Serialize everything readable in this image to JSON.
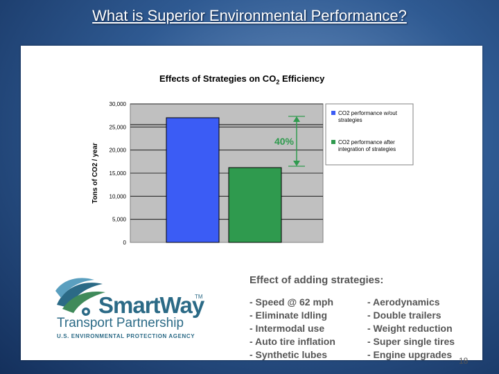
{
  "slide": {
    "title": "What is Superior Environmental Performance?",
    "page_number": "18"
  },
  "chart_data": {
    "type": "bar",
    "title": "Effects of Strategies on CO2 Efficiency",
    "title_parts": {
      "pre": "Effects of Strategies on CO",
      "sub": "2",
      "post": " Efficiency"
    },
    "ylabel": "Tons of CO2 / year",
    "xlabel": "",
    "ylim": [
      0,
      30000
    ],
    "yticks": [
      0,
      5000,
      10000,
      15000,
      20000,
      25000,
      30000
    ],
    "ytick_labels": [
      "0",
      "5,000",
      "10,000",
      "15,000",
      "20,000",
      "25,000",
      "30,000"
    ],
    "grid": true,
    "legend_position": "right",
    "series": [
      {
        "name": "CO2 performance w/out strategies",
        "value": 27000,
        "color": "#3b5cf5"
      },
      {
        "name": "CO2 performance after integration of strategies",
        "value": 16200,
        "color": "#2f9a4e"
      }
    ],
    "annotation": {
      "label": "40%",
      "color": "#2f9a4e"
    },
    "reference_line": 25500
  },
  "strategies": {
    "heading": "Effect of adding strategies:",
    "left": [
      "- Speed @ 62 mph",
      "- Eliminate Idling",
      "- Intermodal use",
      "- Auto tire inflation",
      "- Synthetic lubes"
    ],
    "right": [
      "- Aerodynamics",
      "- Double trailers",
      "- Weight reduction",
      "- Super single tires",
      "- Engine upgrades"
    ]
  },
  "logo": {
    "name": "SmartWay",
    "tm": "TM",
    "line2": "Transport Partnership",
    "line3": "U.S. ENVIRONMENTAL PROTECTION AGENCY"
  }
}
